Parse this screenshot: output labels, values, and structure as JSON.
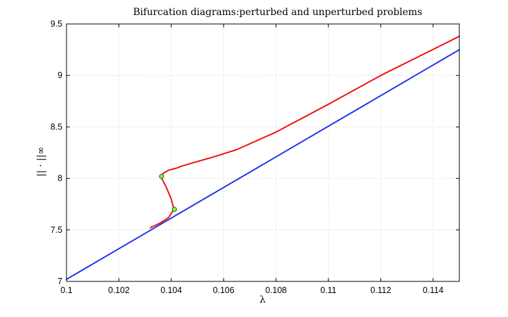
{
  "chart_data": {
    "type": "line",
    "title": "Bifurcation diagrams:perturbed and unperturbed problems",
    "xlabel": "λ",
    "ylabel": "|| · ||∞",
    "xlim": [
      0.1,
      0.115
    ],
    "ylim": [
      7,
      9.5
    ],
    "grid": true,
    "x_ticks": [
      0.1,
      0.102,
      0.104,
      0.106,
      0.108,
      0.11,
      0.112,
      0.114
    ],
    "x_tick_labels": [
      "0.1",
      "0.102",
      "0.104",
      "0.106",
      "0.108",
      "0.11",
      "0.112",
      "0.114"
    ],
    "y_ticks": [
      7,
      7.5,
      8,
      8.5,
      9,
      9.5
    ],
    "y_tick_labels": [
      "7",
      "7.5",
      "8",
      "8.5",
      "9",
      "9.5"
    ],
    "series": [
      {
        "color": "#2233ee",
        "x": [
          0.1,
          0.115
        ],
        "y": [
          7.02,
          9.25
        ]
      },
      {
        "color": "#ee1111",
        "x": [
          0.1032,
          0.1036,
          0.1039,
          0.1041,
          0.104,
          0.1038,
          0.1036,
          0.1037,
          0.1039,
          0.1042,
          0.1044,
          0.1048,
          0.1055,
          0.1065,
          0.108,
          0.11,
          0.112,
          0.115
        ],
        "y": [
          7.52,
          7.57,
          7.62,
          7.7,
          7.8,
          7.92,
          8.02,
          8.05,
          8.08,
          8.1,
          8.12,
          8.15,
          8.2,
          8.28,
          8.45,
          8.72,
          9.0,
          9.38
        ]
      }
    ],
    "markers": [
      {
        "x": 0.10363,
        "y": 8.02,
        "color": "#77ee33"
      },
      {
        "x": 0.10412,
        "y": 7.7,
        "color": "#77ee33"
      }
    ]
  }
}
